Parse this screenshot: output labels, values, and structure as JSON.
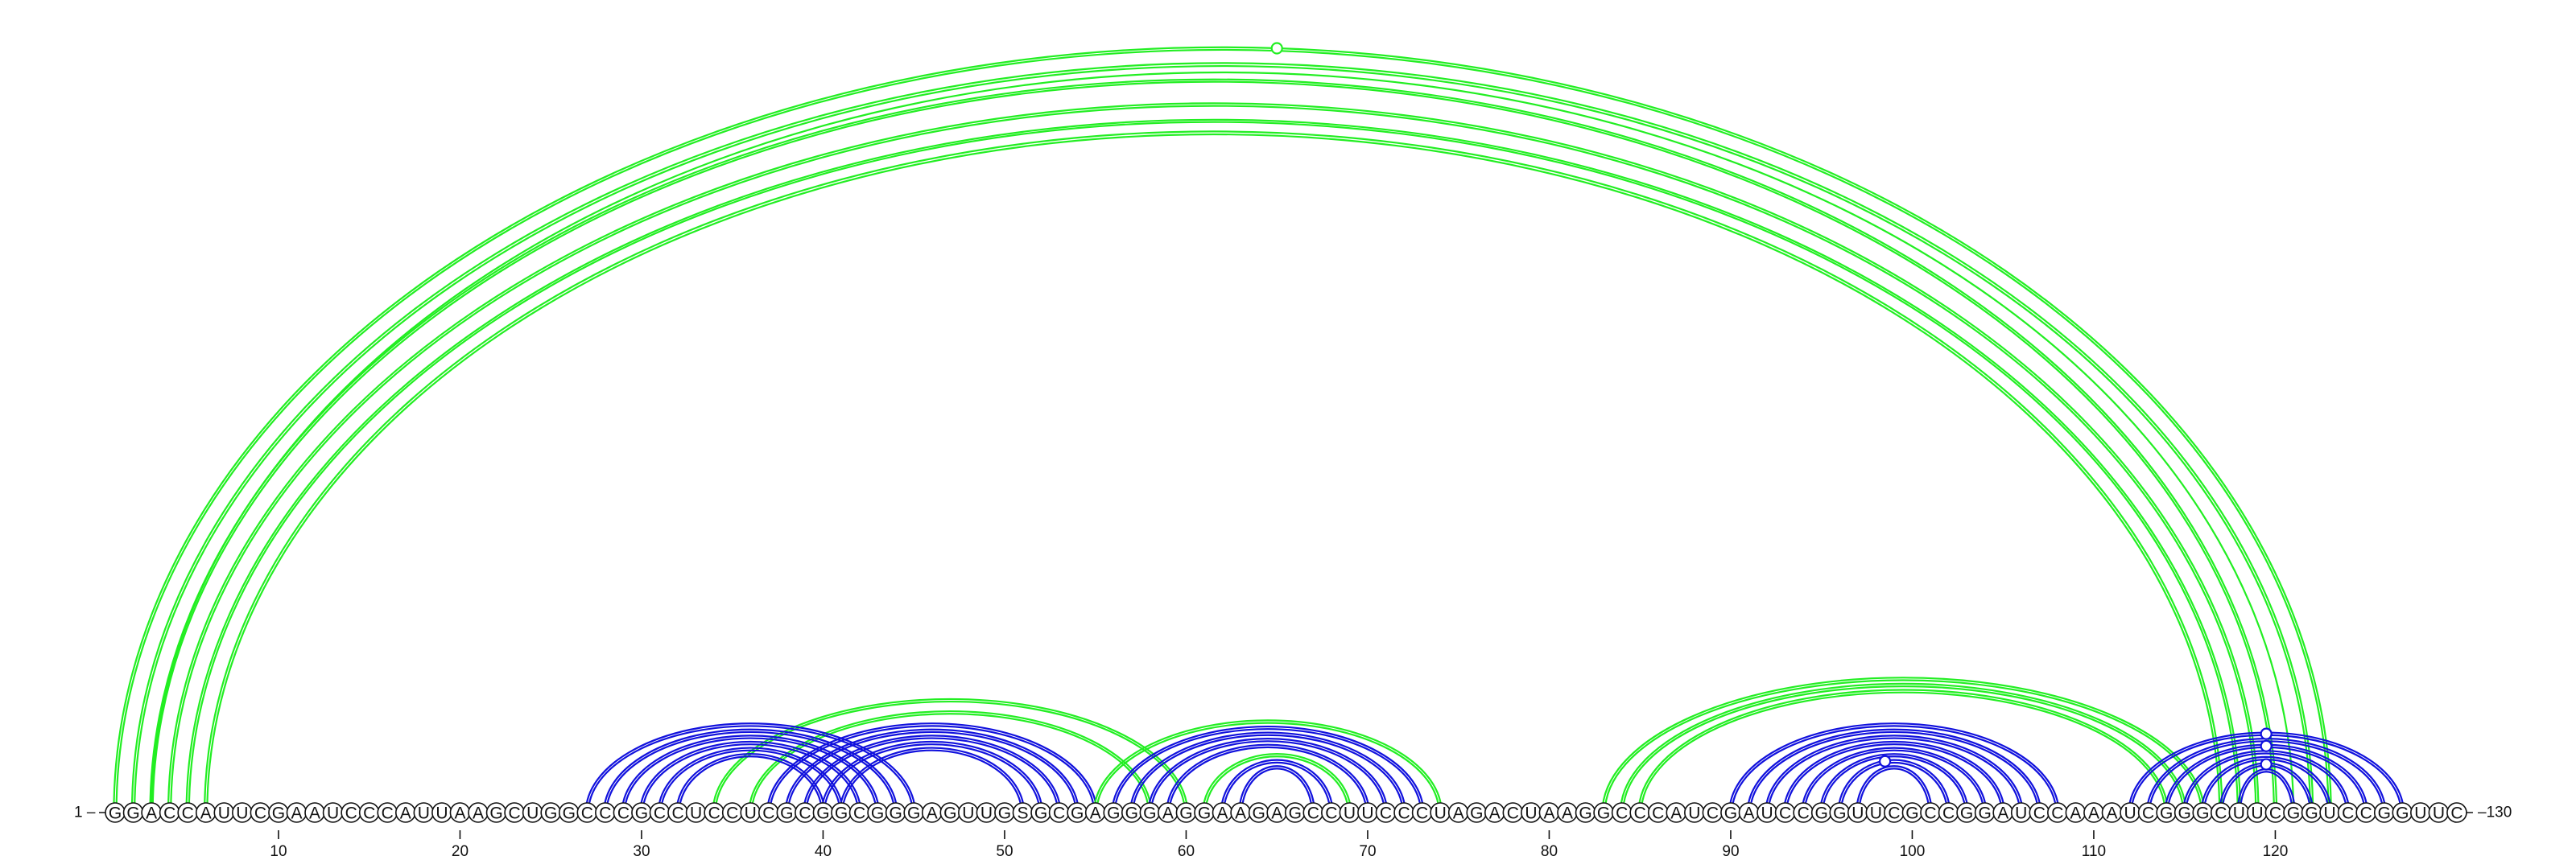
{
  "diagram": {
    "type": "rna-arc-diagram",
    "sequence": "GGACCAUUCGAAUCCCAUUAAGCUGGCCCGCCUCCUCGCGGCGGGAGUUGSGCGAGGGAGGAAGAGCCUUCCCUAGACUAAGGCCCAUCGAUCCGGUUCGCCGGAUCCAAAUCGGGCUUCGGUCCGGUUC",
    "length": 130,
    "start_label": "1 –",
    "end_label": "–130",
    "tick_labels": [
      "10",
      "20",
      "30",
      "40",
      "50",
      "60",
      "70",
      "80",
      "90",
      "100",
      "110",
      "120"
    ],
    "colors": {
      "green": "#22ee22",
      "blue": "#1111dd"
    },
    "arcs": [
      {
        "i": 1,
        "j": 123,
        "color": "green",
        "weight": "double"
      },
      {
        "i": 2,
        "j": 122,
        "color": "green",
        "weight": "double"
      },
      {
        "i": 3,
        "j": 121,
        "color": "green",
        "weight": "thin"
      },
      {
        "i": 3,
        "j": 120,
        "color": "green",
        "weight": "double"
      },
      {
        "i": 4,
        "j": 119,
        "color": "green",
        "weight": "double"
      },
      {
        "i": 5,
        "j": 118,
        "color": "green",
        "weight": "double"
      },
      {
        "i": 6,
        "j": 117,
        "color": "green",
        "weight": "double"
      },
      {
        "i": 34,
        "j": 60,
        "color": "green",
        "weight": "double"
      },
      {
        "i": 36,
        "j": 58,
        "color": "green",
        "weight": "double"
      },
      {
        "i": 27,
        "j": 45,
        "color": "blue",
        "weight": "double"
      },
      {
        "i": 28,
        "j": 44,
        "color": "blue",
        "weight": "double"
      },
      {
        "i": 29,
        "j": 43,
        "color": "blue",
        "weight": "double"
      },
      {
        "i": 30,
        "j": 42,
        "color": "blue",
        "weight": "double"
      },
      {
        "i": 31,
        "j": 41,
        "color": "blue",
        "weight": "double"
      },
      {
        "i": 32,
        "j": 40,
        "color": "blue",
        "weight": "double"
      },
      {
        "i": 37,
        "j": 55,
        "color": "blue",
        "weight": "double"
      },
      {
        "i": 38,
        "j": 54,
        "color": "blue",
        "weight": "double"
      },
      {
        "i": 39,
        "j": 53,
        "color": "blue",
        "weight": "double"
      },
      {
        "i": 40,
        "j": 52,
        "color": "blue",
        "weight": "double"
      },
      {
        "i": 41,
        "j": 51,
        "color": "blue",
        "weight": "double"
      },
      {
        "i": 55,
        "j": 74,
        "color": "green",
        "weight": "double"
      },
      {
        "i": 56,
        "j": 73,
        "color": "blue",
        "weight": "double"
      },
      {
        "i": 57,
        "j": 72,
        "color": "blue",
        "weight": "double"
      },
      {
        "i": 58,
        "j": 71,
        "color": "blue",
        "weight": "double"
      },
      {
        "i": 59,
        "j": 70,
        "color": "blue",
        "weight": "double"
      },
      {
        "i": 61,
        "j": 69,
        "color": "green",
        "weight": "double"
      },
      {
        "i": 62,
        "j": 68,
        "color": "blue",
        "weight": "double"
      },
      {
        "i": 63,
        "j": 67,
        "color": "blue",
        "weight": "double"
      },
      {
        "i": 83,
        "j": 116,
        "color": "green",
        "weight": "double"
      },
      {
        "i": 84,
        "j": 115,
        "color": "green",
        "weight": "double"
      },
      {
        "i": 85,
        "j": 114,
        "color": "green",
        "weight": "double"
      },
      {
        "i": 90,
        "j": 108,
        "color": "blue",
        "weight": "double"
      },
      {
        "i": 91,
        "j": 107,
        "color": "blue",
        "weight": "double"
      },
      {
        "i": 92,
        "j": 106,
        "color": "blue",
        "weight": "double"
      },
      {
        "i": 93,
        "j": 105,
        "color": "blue",
        "weight": "double"
      },
      {
        "i": 94,
        "j": 104,
        "color": "blue",
        "weight": "double"
      },
      {
        "i": 95,
        "j": 103,
        "color": "blue",
        "weight": "double"
      },
      {
        "i": 96,
        "j": 102,
        "color": "blue",
        "weight": "double"
      },
      {
        "i": 97,
        "j": 101,
        "color": "blue",
        "weight": "double"
      },
      {
        "i": 112,
        "j": 127,
        "color": "blue",
        "weight": "double"
      },
      {
        "i": 113,
        "j": 126,
        "color": "blue",
        "weight": "double"
      },
      {
        "i": 114,
        "j": 125,
        "color": "blue",
        "weight": "double"
      },
      {
        "i": 115,
        "j": 124,
        "color": "blue",
        "weight": "double"
      },
      {
        "i": 116,
        "j": 123,
        "color": "blue",
        "weight": "double"
      },
      {
        "i": 117,
        "j": 122,
        "color": "blue",
        "weight": "double"
      },
      {
        "i": 118,
        "j": 121,
        "color": "blue",
        "weight": "double"
      }
    ],
    "loop_markers": [
      {
        "pos": 65,
        "on_arc": 0,
        "color": "green"
      },
      {
        "pos": 98.5,
        "on_arc": 37,
        "color": "blue"
      },
      {
        "pos": 119.5,
        "on_arc": 39,
        "color": "blue"
      },
      {
        "pos": 119.5,
        "on_arc": 41,
        "color": "blue"
      },
      {
        "pos": 119.5,
        "on_arc": 44,
        "color": "blue"
      }
    ]
  }
}
